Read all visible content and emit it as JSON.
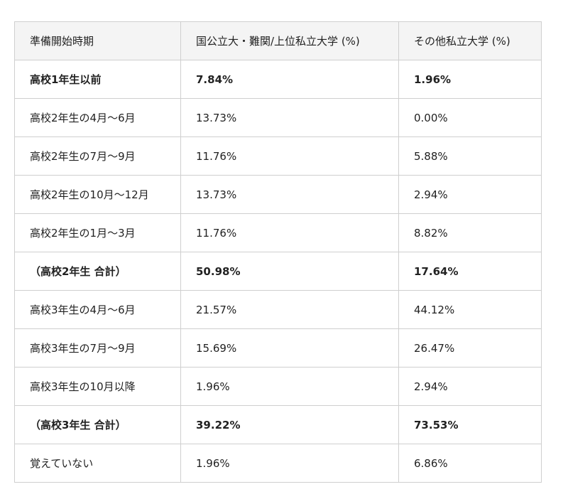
{
  "table": {
    "header": [
      "準備開始時期",
      "国公立大・難関/上位私立大学 (%)",
      "その他私立大学 (%)"
    ],
    "rows": [
      {
        "cells": [
          "高校1年生以前",
          "7.84%",
          "1.96%"
        ],
        "bold": true
      },
      {
        "cells": [
          "高校2年生の4月〜6月",
          "13.73%",
          "0.00%"
        ],
        "bold": false
      },
      {
        "cells": [
          "高校2年生の7月〜9月",
          "11.76%",
          "5.88%"
        ],
        "bold": false
      },
      {
        "cells": [
          "高校2年生の10月〜12月",
          "13.73%",
          "2.94%"
        ],
        "bold": false
      },
      {
        "cells": [
          "高校2年生の1月〜3月",
          "11.76%",
          "8.82%"
        ],
        "bold": false
      },
      {
        "cells": [
          "（高校2年生 合計）",
          "50.98%",
          "17.64%"
        ],
        "bold": true
      },
      {
        "cells": [
          "高校3年生の4月〜6月",
          "21.57%",
          "44.12%"
        ],
        "bold": false
      },
      {
        "cells": [
          "高校3年生の7月〜9月",
          "15.69%",
          "26.47%"
        ],
        "bold": false
      },
      {
        "cells": [
          "高校3年生の10月以降",
          "1.96%",
          "2.94%"
        ],
        "bold": false
      },
      {
        "cells": [
          "（高校3年生 合計）",
          "39.22%",
          "73.53%"
        ],
        "bold": true
      },
      {
        "cells": [
          "覚えていない",
          "1.96%",
          "6.86%"
        ],
        "bold": false
      }
    ]
  }
}
